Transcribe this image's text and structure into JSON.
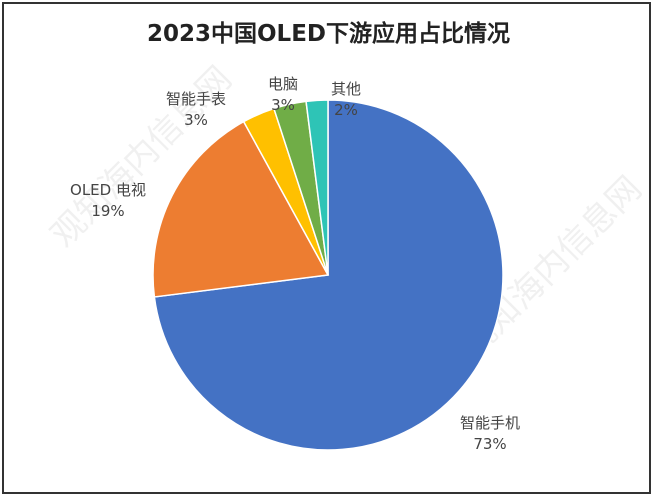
{
  "chart_data": {
    "type": "pie",
    "title": "2023中国OLED下游应用占比情况",
    "categories": [
      "智能手机",
      "OLED 电视",
      "智能手表",
      "电脑",
      "其他"
    ],
    "values": [
      73,
      19,
      3,
      3,
      2
    ],
    "value_labels": [
      "73%",
      "19%",
      "3%",
      "3%",
      "2%"
    ],
    "colors": [
      "#4472C4",
      "#ED7D31",
      "#FFC000",
      "#70AD47",
      "#2EC4B6"
    ],
    "start_angle": "top, clockwise",
    "legend": "none"
  },
  "watermark": "观知海内信息网"
}
